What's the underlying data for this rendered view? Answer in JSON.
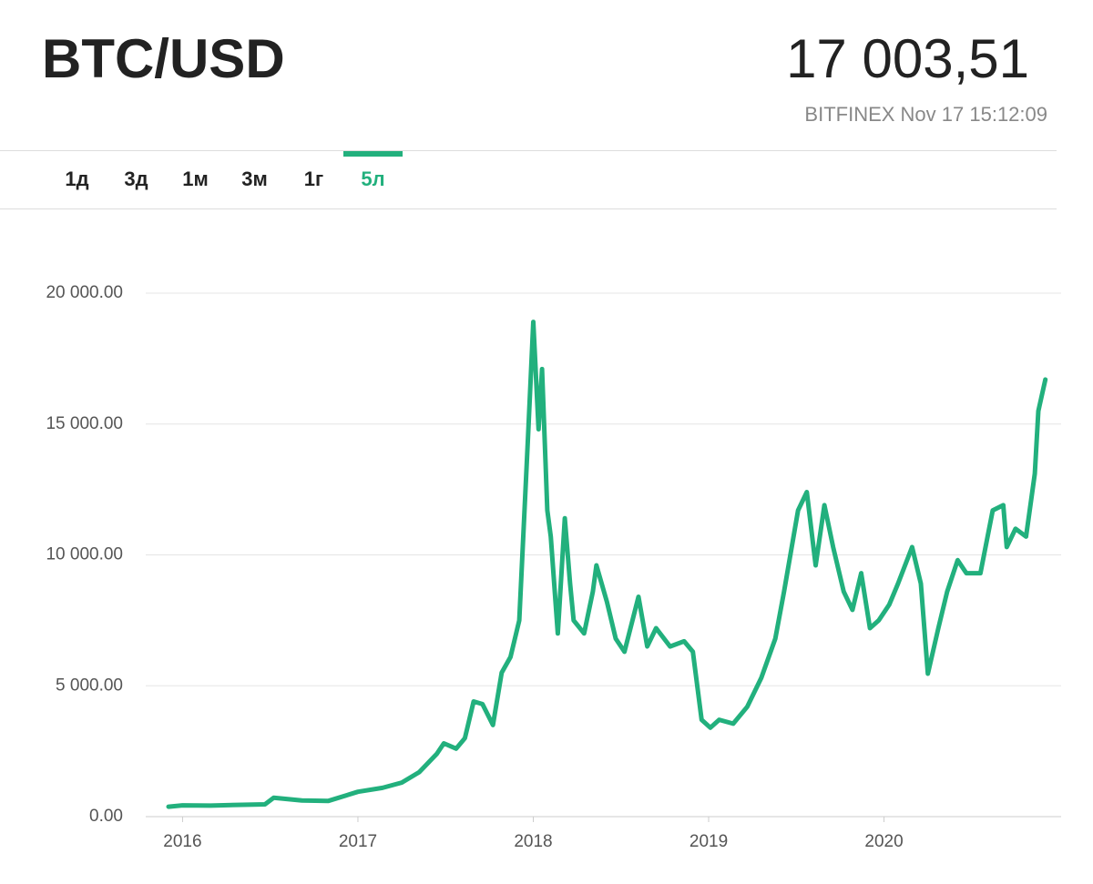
{
  "header": {
    "title": "BTC/USD",
    "price": "17 003,51",
    "source": "BITFINEX Nov 17 15:12:09",
    "tabs": [
      "1д",
      "3д",
      "1м",
      "3м",
      "1г",
      "5л"
    ],
    "active_tab": 5
  },
  "chart_data": {
    "type": "line",
    "color": "#22b07d",
    "grid": true,
    "x": [
      2015.92,
      2016.0,
      2016.16,
      2016.31,
      2016.47,
      2016.52,
      2016.68,
      2016.83,
      2017.0,
      2017.14,
      2017.25,
      2017.35,
      2017.45,
      2017.49,
      2017.56,
      2017.61,
      2017.66,
      2017.71,
      2017.77,
      2017.82,
      2017.87,
      2017.92,
      2017.97,
      2018.0,
      2018.03,
      2018.05,
      2018.08,
      2018.1,
      2018.14,
      2018.18,
      2018.21,
      2018.23,
      2018.29,
      2018.34,
      2018.36,
      2018.42,
      2018.47,
      2018.52,
      2018.6,
      2018.65,
      2018.7,
      2018.78,
      2018.86,
      2018.91,
      2018.96,
      2019.01,
      2019.06,
      2019.14,
      2019.22,
      2019.3,
      2019.38,
      2019.43,
      2019.51,
      2019.56,
      2019.61,
      2019.66,
      2019.71,
      2019.77,
      2019.82,
      2019.87,
      2019.92,
      2019.97,
      2020.03,
      2020.08,
      2020.16,
      2020.21,
      2020.25,
      2020.31,
      2020.36,
      2020.42,
      2020.47,
      2020.55,
      2020.62,
      2020.68,
      2020.7,
      2020.75,
      2020.81,
      2020.86,
      2020.88,
      2020.92
    ],
    "values": [
      380,
      430,
      420,
      450,
      470,
      720,
      620,
      600,
      950,
      1100,
      1300,
      1700,
      2400,
      2800,
      2600,
      3000,
      4400,
      4300,
      3500,
      5500,
      6100,
      7500,
      14500,
      18900,
      14800,
      17100,
      11700,
      10700,
      7000,
      11400,
      8900,
      7500,
      7000,
      8600,
      9600,
      8200,
      6800,
      6300,
      8400,
      6500,
      7200,
      6500,
      6700,
      6300,
      3700,
      3400,
      3700,
      3550,
      4200,
      5300,
      6800,
      8600,
      11700,
      12400,
      9600,
      11900,
      10300,
      8600,
      7900,
      9300,
      7200,
      7500,
      8100,
      8900,
      10300,
      8900,
      5460,
      7200,
      8600,
      9800,
      9300,
      9300,
      11700,
      11900,
      10300,
      11000,
      10700,
      13100,
      15500,
      16700
    ],
    "xlim": [
      2015.79,
      2021.01
    ],
    "xticks": [
      2016,
      2017,
      2018,
      2019,
      2020
    ],
    "ylim": [
      0,
      20000
    ],
    "yticks": [
      {
        "value": 0,
        "label": "0.00"
      },
      {
        "value": 5000,
        "label": "5 000.00"
      },
      {
        "value": 10000,
        "label": "10 000.00"
      },
      {
        "value": 15000,
        "label": "15 000.00"
      },
      {
        "value": 20000,
        "label": "20 000.00"
      }
    ]
  }
}
